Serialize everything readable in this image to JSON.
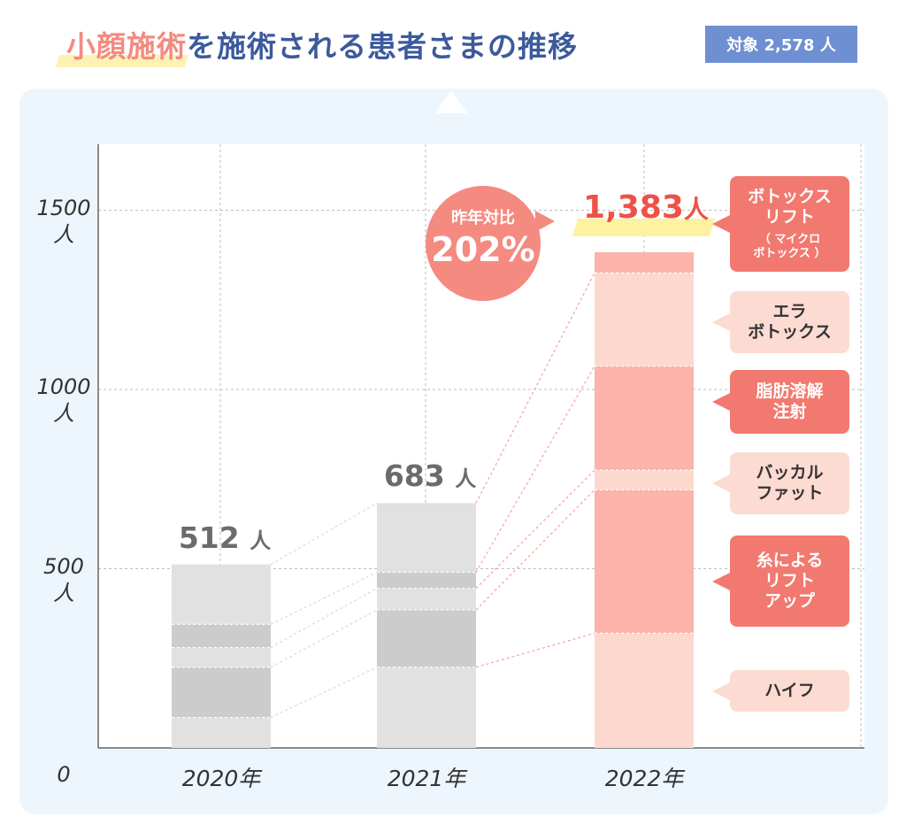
{
  "header": {
    "title_highlight": "小顔施術",
    "title_rest": "を施術される患者さまの推移",
    "target_badge": "対象 2,578 人"
  },
  "chart_data": {
    "type": "bar",
    "stacked": true,
    "categories": [
      "2020年",
      "2021年",
      "2022年"
    ],
    "ylim": [
      0,
      1700
    ],
    "yticks": [
      {
        "value": 0,
        "label": "0",
        "unit": ""
      },
      {
        "value": 500,
        "label": "500",
        "unit": "人"
      },
      {
        "value": 1000,
        "label": "1000",
        "unit": "人"
      },
      {
        "value": 1500,
        "label": "1500",
        "unit": "人"
      }
    ],
    "totals": [
      {
        "number": "512",
        "unit": "人"
      },
      {
        "number": "683",
        "unit": "人"
      },
      {
        "number": "1,383",
        "unit": "人"
      }
    ],
    "total_values": [
      512,
      683,
      1383
    ],
    "series": [
      {
        "key": "hifu",
        "name": "ハイフ",
        "values": [
          85,
          225,
          320
        ]
      },
      {
        "key": "thread",
        "name": "糸によるリフトアップ",
        "values": [
          140,
          160,
          400
        ]
      },
      {
        "key": "buccal",
        "name": "バッカルファット",
        "values": [
          55,
          60,
          55
        ]
      },
      {
        "key": "fat",
        "name": "脂肪溶解注射",
        "values": [
          65,
          45,
          290
        ]
      },
      {
        "key": "era",
        "name": "エラボトックス",
        "values": [
          167,
          193,
          260
        ]
      },
      {
        "key": "botox_lift",
        "name": "ボトックスリフト（マイクロボトックス）",
        "values": [
          0,
          0,
          58
        ]
      }
    ],
    "grid": true,
    "year_over_year": {
      "label": "昨年対比",
      "value": "202%"
    },
    "colors": {
      "gray_light": "#e1e1e1",
      "gray_dark": "#cccccc",
      "pink_light": "#fcd8cf",
      "pink_mid": "#fbb3aa",
      "pink_dark": "#f48a80",
      "accent_red": "#ef5148",
      "title_blue": "#3c5a9c",
      "badge_blue": "#6e8fd2"
    },
    "callouts": [
      {
        "key": "botox_lift",
        "style": "dark",
        "text": "ボトックス\nリフト",
        "sub": "（ マイクロ\nボトックス ）"
      },
      {
        "key": "era",
        "style": "light",
        "text": "エラ\nボトックス"
      },
      {
        "key": "fat",
        "style": "dark",
        "text": "脂肪溶解\n注射"
      },
      {
        "key": "buccal",
        "style": "light",
        "text": "バッカル\nファット"
      },
      {
        "key": "thread",
        "style": "dark",
        "text": "糸による\nリフト\nアップ"
      },
      {
        "key": "hifu",
        "style": "light",
        "text": "ハイフ"
      }
    ]
  }
}
